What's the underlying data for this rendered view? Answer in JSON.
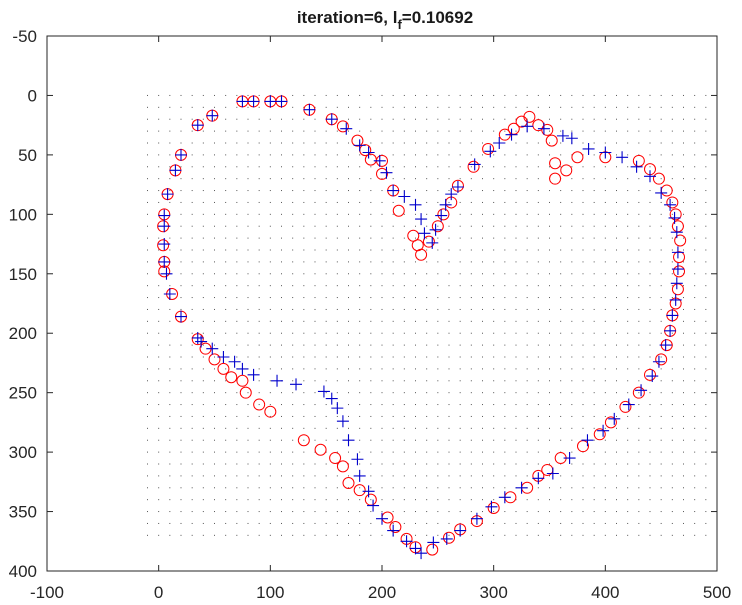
{
  "chart_data": {
    "type": "scatter",
    "title": {
      "prefix": "iteration=6,  l",
      "subscript": "f",
      "suffix": "=0.10692"
    },
    "xlabel": "",
    "ylabel": "",
    "xlim": [
      -100,
      500
    ],
    "ylim": [
      -50,
      400
    ],
    "y_reversed": true,
    "x_ticks": [
      -100,
      0,
      100,
      200,
      300,
      400,
      500
    ],
    "y_ticks": [
      -50,
      0,
      50,
      100,
      150,
      200,
      250,
      300,
      350,
      400
    ],
    "grid": "off",
    "colors": {
      "circles": "#ff0000",
      "plus": "#0000cc",
      "dots": "#555555",
      "axes": "#262626"
    },
    "series": [
      {
        "marker": "circle",
        "color": "#ff0000",
        "points": [
          [
            75,
            5
          ],
          [
            85,
            5
          ],
          [
            100,
            5
          ],
          [
            110,
            5
          ],
          [
            135,
            12
          ],
          [
            155,
            20
          ],
          [
            165,
            26
          ],
          [
            178,
            38
          ],
          [
            185,
            46
          ],
          [
            190,
            54
          ],
          [
            200,
            55
          ],
          [
            200,
            66
          ],
          [
            210,
            80
          ],
          [
            215,
            97
          ],
          [
            228,
            118
          ],
          [
            232,
            126
          ],
          [
            235,
            134
          ],
          [
            242,
            123
          ],
          [
            250,
            110
          ],
          [
            255,
            100
          ],
          [
            262,
            90
          ],
          [
            268,
            76
          ],
          [
            282,
            60
          ],
          [
            295,
            45
          ],
          [
            310,
            33
          ],
          [
            318,
            28
          ],
          [
            325,
            22
          ],
          [
            332,
            18
          ],
          [
            340,
            25
          ],
          [
            348,
            29
          ],
          [
            352,
            38
          ],
          [
            355,
            57
          ],
          [
            355,
            70
          ],
          [
            365,
            63
          ],
          [
            375,
            52
          ],
          [
            400,
            52
          ],
          [
            430,
            55
          ],
          [
            440,
            62
          ],
          [
            448,
            70
          ],
          [
            455,
            80
          ],
          [
            460,
            90
          ],
          [
            463,
            100
          ],
          [
            465,
            110
          ],
          [
            467,
            122
          ],
          [
            466,
            136
          ],
          [
            466,
            148
          ],
          [
            465,
            163
          ],
          [
            463,
            175
          ],
          [
            460,
            185
          ],
          [
            458,
            198
          ],
          [
            455,
            210
          ],
          [
            450,
            222
          ],
          [
            440,
            235
          ],
          [
            430,
            250
          ],
          [
            418,
            262
          ],
          [
            405,
            275
          ],
          [
            395,
            285
          ],
          [
            380,
            295
          ],
          [
            360,
            305
          ],
          [
            348,
            315
          ],
          [
            340,
            320
          ],
          [
            330,
            330
          ],
          [
            315,
            338
          ],
          [
            300,
            347
          ],
          [
            285,
            358
          ],
          [
            270,
            365
          ],
          [
            260,
            372
          ],
          [
            245,
            382
          ],
          [
            230,
            380
          ],
          [
            222,
            373
          ],
          [
            212,
            363
          ],
          [
            205,
            355
          ],
          [
            190,
            340
          ],
          [
            180,
            332
          ],
          [
            170,
            326
          ],
          [
            165,
            312
          ],
          [
            158,
            305
          ],
          [
            145,
            298
          ],
          [
            130,
            290
          ],
          [
            100,
            266
          ],
          [
            90,
            260
          ],
          [
            78,
            250
          ],
          [
            75,
            240
          ],
          [
            65,
            237
          ],
          [
            58,
            230
          ],
          [
            50,
            222
          ],
          [
            42,
            213
          ],
          [
            35,
            205
          ],
          [
            20,
            186
          ],
          [
            12,
            167
          ],
          [
            5,
            148
          ],
          [
            5,
            140
          ],
          [
            4,
            126
          ],
          [
            4,
            110
          ],
          [
            5,
            100
          ],
          [
            8,
            83
          ],
          [
            15,
            63
          ],
          [
            20,
            50
          ],
          [
            35,
            25
          ],
          [
            48,
            17
          ]
        ]
      },
      {
        "marker": "plus",
        "color": "#0000cc",
        "points": [
          [
            75,
            5
          ],
          [
            85,
            5
          ],
          [
            100,
            5
          ],
          [
            110,
            5
          ],
          [
            135,
            12
          ],
          [
            155,
            20
          ],
          [
            168,
            28
          ],
          [
            180,
            42
          ],
          [
            188,
            48
          ],
          [
            198,
            55
          ],
          [
            204,
            65
          ],
          [
            210,
            80
          ],
          [
            220,
            85
          ],
          [
            230,
            92
          ],
          [
            235,
            104
          ],
          [
            238,
            116
          ],
          [
            245,
            124
          ],
          [
            248,
            113
          ],
          [
            253,
            101
          ],
          [
            257,
            92
          ],
          [
            262,
            83
          ],
          [
            268,
            77
          ],
          [
            283,
            58
          ],
          [
            297,
            47
          ],
          [
            305,
            40
          ],
          [
            316,
            33
          ],
          [
            330,
            26
          ],
          [
            345,
            28
          ],
          [
            362,
            34
          ],
          [
            370,
            36
          ],
          [
            385,
            45
          ],
          [
            400,
            48
          ],
          [
            415,
            52
          ],
          [
            428,
            60
          ],
          [
            440,
            68
          ],
          [
            450,
            82
          ],
          [
            458,
            92
          ],
          [
            462,
            103
          ],
          [
            464,
            115
          ],
          [
            465,
            132
          ],
          [
            465,
            146
          ],
          [
            464,
            158
          ],
          [
            463,
            172
          ],
          [
            460,
            185
          ],
          [
            458,
            198
          ],
          [
            454,
            210
          ],
          [
            448,
            224
          ],
          [
            442,
            236
          ],
          [
            432,
            248
          ],
          [
            421,
            260
          ],
          [
            408,
            272
          ],
          [
            398,
            282
          ],
          [
            384,
            290
          ],
          [
            368,
            305
          ],
          [
            353,
            318
          ],
          [
            340,
            322
          ],
          [
            325,
            330
          ],
          [
            310,
            338
          ],
          [
            298,
            346
          ],
          [
            285,
            356
          ],
          [
            270,
            366
          ],
          [
            258,
            373
          ],
          [
            246,
            376
          ],
          [
            235,
            385
          ],
          [
            230,
            381
          ],
          [
            222,
            375
          ],
          [
            210,
            366
          ],
          [
            200,
            356
          ],
          [
            192,
            345
          ],
          [
            188,
            333
          ],
          [
            180,
            320
          ],
          [
            178,
            306
          ],
          [
            170,
            290
          ],
          [
            165,
            274
          ],
          [
            160,
            263
          ],
          [
            155,
            255
          ],
          [
            148,
            249
          ],
          [
            123,
            243
          ],
          [
            106,
            240
          ],
          [
            85,
            235
          ],
          [
            75,
            230
          ],
          [
            68,
            224
          ],
          [
            58,
            220
          ],
          [
            48,
            213
          ],
          [
            38,
            207
          ],
          [
            35,
            204
          ],
          [
            20,
            186
          ],
          [
            10,
            167
          ],
          [
            7,
            150
          ],
          [
            5,
            140
          ],
          [
            5,
            125
          ],
          [
            5,
            110
          ],
          [
            5,
            101
          ],
          [
            8,
            83
          ],
          [
            15,
            63
          ],
          [
            20,
            50
          ],
          [
            35,
            25
          ],
          [
            48,
            17
          ]
        ]
      }
    ],
    "background_points": {
      "marker": "dot",
      "color": "#555555",
      "x_range": [
        -10,
        490
      ],
      "x_step": 10,
      "y_range": [
        0,
        370
      ],
      "y_step": 10
    }
  }
}
